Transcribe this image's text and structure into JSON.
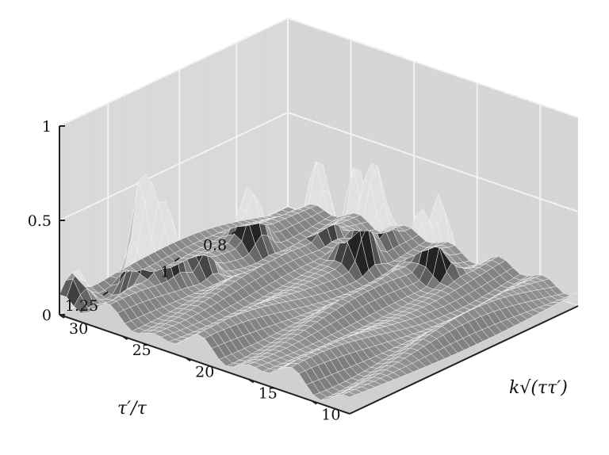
{
  "chart_data": {
    "type": "surface",
    "xlabel": "k√(ττ′)",
    "ylabel": "τ′/τ",
    "zlabel": "",
    "xlim": [
      7,
      30
    ],
    "ylim": [
      0.62,
      1.42
    ],
    "zlim": [
      0,
      1
    ],
    "x_ticks": [
      "10",
      "15",
      "20",
      "25",
      "30"
    ],
    "y_ticks": [
      "1.25",
      "1",
      "0.8"
    ],
    "z_ticks": [
      "0",
      "0.5",
      "1"
    ],
    "grid": true,
    "baseline": 0.08,
    "peaks": [
      {
        "k": 29.5,
        "r": 1.38,
        "height": 0.17
      },
      {
        "k": 28.0,
        "r": 1.22,
        "height": 0.6
      },
      {
        "k": 27.3,
        "r": 1.17,
        "height": 0.35
      },
      {
        "k": 26.5,
        "r": 1.08,
        "height": 0.2
      },
      {
        "k": 27.5,
        "r": 0.86,
        "height": 0.28
      },
      {
        "k": 24.0,
        "r": 0.78,
        "height": 0.42
      },
      {
        "k": 20.5,
        "r": 0.8,
        "height": 0.5
      },
      {
        "k": 21.5,
        "r": 0.7,
        "height": 0.44
      },
      {
        "k": 17.0,
        "r": 0.73,
        "height": 0.26
      },
      {
        "k": 15.0,
        "r": 0.75,
        "height": 0.44
      }
    ]
  }
}
